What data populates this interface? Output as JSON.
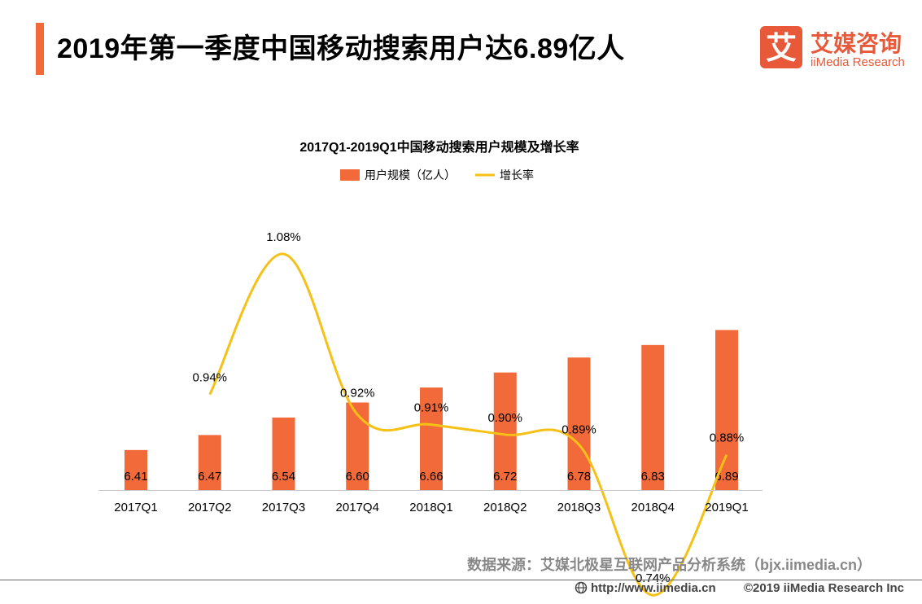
{
  "header": {
    "title": "2019年第一季度中国移动搜索用户达6.89亿人"
  },
  "brand": {
    "logo_glyph": "艾",
    "name_cn": "艾媒咨询",
    "name_en": "iiMedia Research",
    "color": "#e8593a"
  },
  "chart_data": {
    "type": "bar",
    "title": "2017Q1-2019Q1中国移动搜索用户规模及增长率",
    "categories": [
      "2017Q1",
      "2017Q2",
      "2017Q3",
      "2017Q4",
      "2018Q1",
      "2018Q2",
      "2018Q3",
      "2018Q4",
      "2019Q1"
    ],
    "series": [
      {
        "name": "用户规模（亿人）",
        "type": "bar",
        "color": "#f26a3a",
        "values": [
          6.41,
          6.47,
          6.54,
          6.6,
          6.66,
          6.72,
          6.78,
          6.83,
          6.89
        ],
        "labels": [
          "6.41",
          "6.47",
          "6.54",
          "6.60",
          "6.66",
          "6.72",
          "6.78",
          "6.83",
          "6.89"
        ]
      },
      {
        "name": "增长率",
        "type": "line",
        "color": "#f5c116",
        "values": [
          null,
          0.94,
          1.08,
          0.92,
          0.91,
          0.9,
          0.89,
          0.74,
          0.88
        ],
        "labels": [
          "",
          "0.94%",
          "1.08%",
          "0.92%",
          "0.91%",
          "0.90%",
          "0.89%",
          "0.74%",
          "0.88%"
        ]
      }
    ],
    "legend_position": "top-center",
    "grid": false
  },
  "footer": {
    "source": "数据来源：艾媒北极星互联网产品分析系统（bjx.iimedia.cn）",
    "url": "http://www.iimedia.cn",
    "copyright": "©2019  iiMedia Research  Inc"
  }
}
